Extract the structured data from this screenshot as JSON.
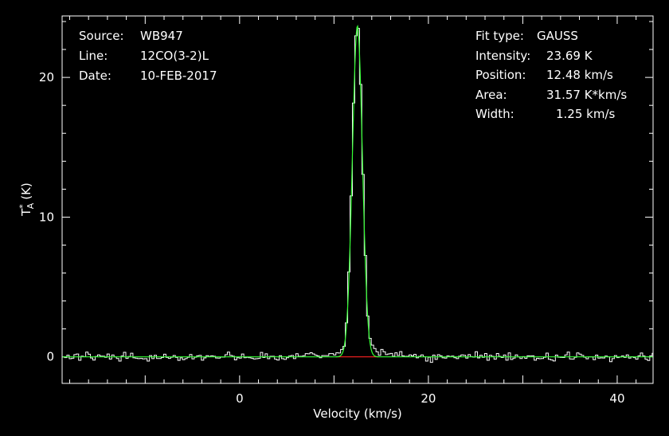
{
  "chart_data": {
    "type": "line",
    "xlabel": "Velocity (km/s)",
    "ylabel": {
      "base": "T",
      "sup": "*",
      "sub": "A",
      "unit": "(K)"
    },
    "xlim": [
      -18.8,
      43.8
    ],
    "ylim": [
      -1.9,
      24.4
    ],
    "x_ticks": [
      0,
      20,
      40
    ],
    "y_ticks": [
      0,
      10,
      20
    ],
    "x_minor_step": 2,
    "y_minor_step": 2,
    "info_left": [
      {
        "label": "Source:",
        "value": "WB947"
      },
      {
        "label": "Line:",
        "value": "12CO(3-2)L"
      },
      {
        "label": "Date:",
        "value": "10-FEB-2017"
      }
    ],
    "info_right": [
      {
        "label": "Fit type:",
        "value": "GAUSS"
      },
      {
        "label": "Intensity:",
        "value": "23.69 K"
      },
      {
        "label": "Position:",
        "value": "12.48 km/s"
      },
      {
        "label": "Area:",
        "value": "31.57 K*km/s"
      },
      {
        "label": "Width:",
        "value": "1.25 km/s"
      }
    ],
    "fit": {
      "amplitude": 23.69,
      "center": 12.48,
      "fwhm": 1.25
    },
    "baseline_segment": {
      "x": [
        10.2,
        14.7
      ],
      "y": 0
    },
    "spectrum": {
      "channel_width": 0.25,
      "noise_rms": 0.28,
      "seed": 947,
      "wing": {
        "center": 12.48,
        "amplitude": 0.35,
        "sigma": 3.5
      }
    },
    "colors": {
      "spectrum": "#ffffff",
      "fit": "#33ff33",
      "baseline": "#ff2222",
      "frame": "#ffffff"
    }
  }
}
